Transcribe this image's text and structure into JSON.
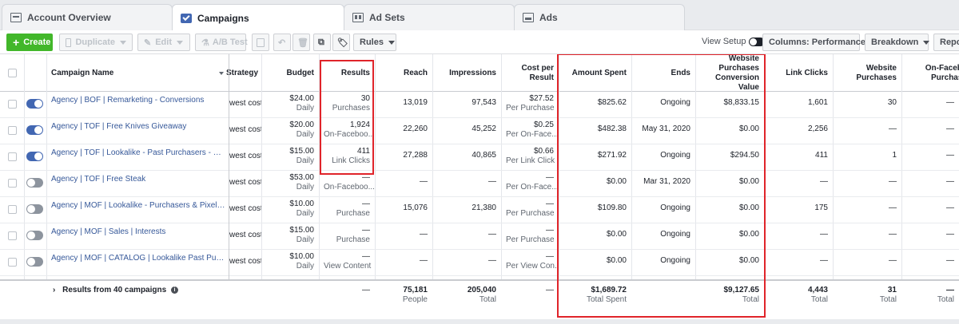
{
  "tabs": [
    {
      "label": "Account Overview",
      "icon": "overview-icon",
      "active": false
    },
    {
      "label": "Campaigns",
      "icon": "campaign-checkbox-icon",
      "active": true
    },
    {
      "label": "Ad Sets",
      "icon": "adsets-icon",
      "active": false
    },
    {
      "label": "Ads",
      "icon": "ads-icon",
      "active": false
    }
  ],
  "toolbar": {
    "create": "Create",
    "duplicate": "Duplicate",
    "edit": "Edit",
    "ab_test": "A/B Test",
    "rules": "Rules",
    "view_setup": "View Setup",
    "columns": "Columns: Performance",
    "breakdown": "Breakdown",
    "reports": "Repor"
  },
  "columns": {
    "campaign_name": "Campaign Name",
    "strategy": "Strategy",
    "budget": "Budget",
    "results": "Results",
    "reach": "Reach",
    "impressions": "Impressions",
    "cost_per_result": "Cost per Result",
    "amount_spent": "Amount Spent",
    "ends": "Ends",
    "website_purchases_value": "Website Purchases Conversion Value",
    "link_clicks": "Link Clicks",
    "website_purchases": "Website Purchases",
    "on_facebook_purchases": "On-Facebo Purchase"
  },
  "rows": [
    {
      "active": true,
      "name": "Agency | BOF | Remarketing - Conversions",
      "strategy": "west cost",
      "budget": "$24.00",
      "budget_sub": "Daily",
      "results": "30",
      "results_sub": "Purchases",
      "reach": "13,019",
      "impressions": "97,543",
      "cpr": "$27.52",
      "cpr_sub": "Per Purchase",
      "spent": "$825.62",
      "ends": "Ongoing",
      "wpcv": "$8,833.15",
      "clicks": "1,601",
      "wp": "30",
      "ofp": "—"
    },
    {
      "active": true,
      "name": "Agency | TOF | Free Knives Giveaway",
      "strategy": "west cost",
      "budget": "$20.00",
      "budget_sub": "Daily",
      "results": "1,924",
      "results_sub": "On-Faceboo...",
      "reach": "22,260",
      "impressions": "45,252",
      "cpr": "$0.25",
      "cpr_sub": "Per On-Face...",
      "spent": "$482.38",
      "ends": "May 31, 2020",
      "wpcv": "$0.00",
      "clicks": "2,256",
      "wp": "—",
      "ofp": "—"
    },
    {
      "active": true,
      "name": "Agency | TOF | Lookalike - Past Purchasers - Websit...",
      "strategy": "west cost",
      "budget": "$15.00",
      "budget_sub": "Daily",
      "results": "411",
      "results_sub": "Link Clicks",
      "reach": "27,288",
      "impressions": "40,865",
      "cpr": "$0.66",
      "cpr_sub": "Per Link Click",
      "spent": "$271.92",
      "ends": "Ongoing",
      "wpcv": "$294.50",
      "clicks": "411",
      "wp": "1",
      "ofp": "—"
    },
    {
      "active": false,
      "name": "Agency | TOF | Free Steak",
      "strategy": "west cost",
      "budget": "$53.00",
      "budget_sub": "Daily",
      "results": "—",
      "results_sub": "On-Faceboo...",
      "reach": "—",
      "impressions": "—",
      "cpr": "—",
      "cpr_sub": "Per On-Face...",
      "spent": "$0.00",
      "ends": "Mar 31, 2020",
      "wpcv": "$0.00",
      "clicks": "—",
      "wp": "—",
      "ofp": "—"
    },
    {
      "active": false,
      "name": "Agency | MOF | Lookalike - Purchasers & Pixel - Conv...",
      "strategy": "west cost",
      "budget": "$10.00",
      "budget_sub": "Daily",
      "results": "—",
      "results_sub": "Purchase",
      "reach": "15,076",
      "impressions": "21,380",
      "cpr": "—",
      "cpr_sub": "Per Purchase",
      "spent": "$109.80",
      "ends": "Ongoing",
      "wpcv": "$0.00",
      "clicks": "175",
      "wp": "—",
      "ofp": "—"
    },
    {
      "active": false,
      "name": "Agency | MOF | Sales | Interests",
      "strategy": "west cost",
      "budget": "$15.00",
      "budget_sub": "Daily",
      "results": "—",
      "results_sub": "Purchase",
      "reach": "—",
      "impressions": "—",
      "cpr": "—",
      "cpr_sub": "Per Purchase",
      "spent": "$0.00",
      "ends": "Ongoing",
      "wpcv": "$0.00",
      "clicks": "—",
      "wp": "—",
      "ofp": "—"
    },
    {
      "active": false,
      "name": "Agency | MOF | CATALOG | Lookalike Past Purchasers",
      "strategy": "west cost",
      "budget": "$10.00",
      "budget_sub": "Daily",
      "results": "—",
      "results_sub": "View Content",
      "reach": "—",
      "impressions": "—",
      "cpr": "—",
      "cpr_sub": "Per View Con...",
      "spent": "$0.00",
      "ends": "Ongoing",
      "wpcv": "$0.00",
      "clicks": "—",
      "wp": "—",
      "ofp": "—"
    }
  ],
  "footer": {
    "label": "Results from 40 campaigns",
    "results": "—",
    "reach": "75,181",
    "reach_sub": "People",
    "impressions": "205,040",
    "impressions_sub": "Total",
    "cpr": "—",
    "spent": "$1,689.72",
    "spent_sub": "Total Spent",
    "wpcv": "$9,127.65",
    "wpcv_sub": "Total",
    "clicks": "4,443",
    "clicks_sub": "Total",
    "wp": "31",
    "wp_sub": "Total",
    "ofp": "—",
    "ofp_sub": "Total"
  },
  "colors": {
    "accent": "#4267b2",
    "create": "#42b72a",
    "highlight": "#e0242a",
    "link": "#365899"
  }
}
